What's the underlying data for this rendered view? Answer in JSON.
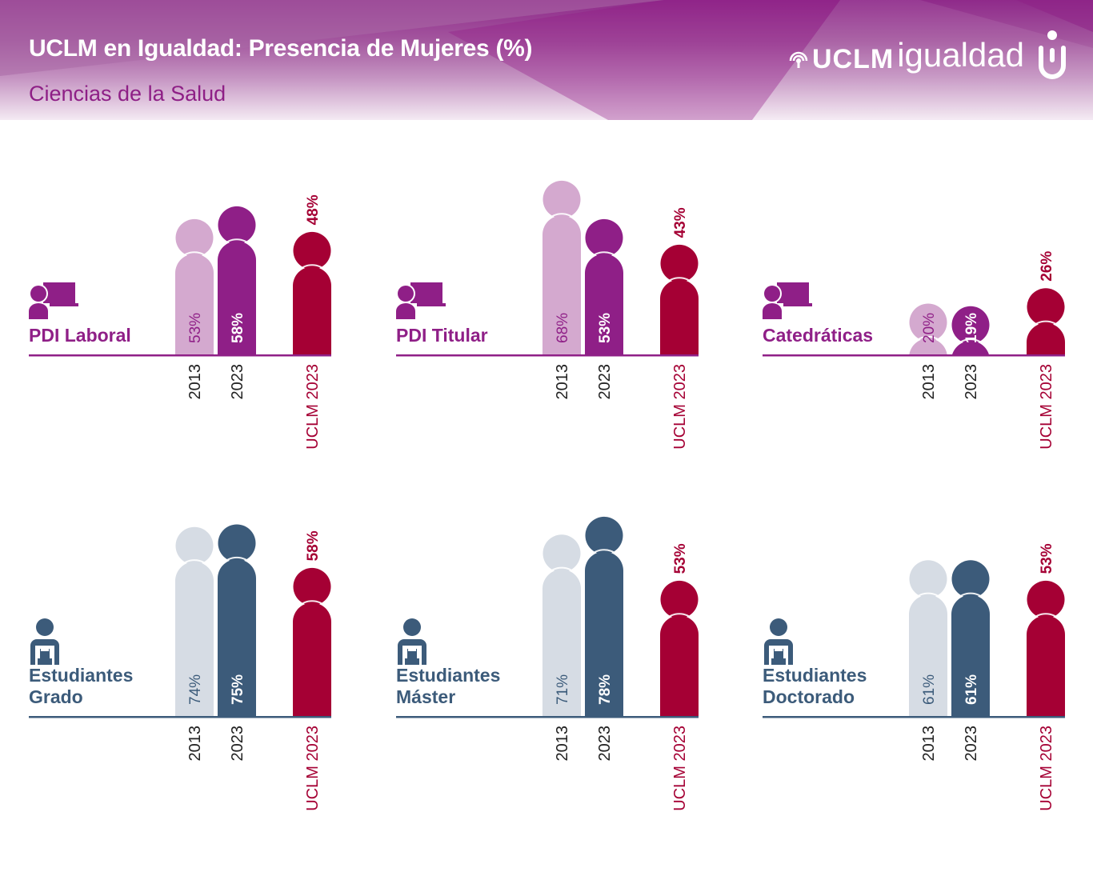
{
  "header": {
    "title": "UCLM en Igualdad: Presencia de Mujeres (%)",
    "subtitle": "Ciencias de la Salud",
    "logo": {
      "wordmark_bold": "UCLM",
      "wordmark_light": "igualdad",
      "icon": "uclm-broadcast-icon",
      "badge_icon": "u-igualdad-badge-icon"
    }
  },
  "colors": {
    "pdi_2013": "#d4a9cf",
    "pdi_2023": "#8f1f87",
    "est_2013": "#d6dce4",
    "est_2023": "#3c5b7a",
    "uclm": "#a50034",
    "pdi_text": "#8f1f87",
    "est_text": "#3c5b7a"
  },
  "chart_data": [
    {
      "type": "bar",
      "title": "PDI Laboral",
      "group": "pdi",
      "icon": "teacher-at-board-icon",
      "categories": [
        "2013",
        "2023",
        "UCLM 2023"
      ],
      "values": [
        53,
        58,
        48
      ],
      "labels": [
        "53%",
        "58%",
        "48%"
      ],
      "ylim": [
        0,
        100
      ]
    },
    {
      "type": "bar",
      "title": "PDI Titular",
      "group": "pdi",
      "icon": "teacher-at-board-icon",
      "categories": [
        "2013",
        "2023",
        "UCLM 2023"
      ],
      "values": [
        68,
        53,
        43
      ],
      "labels": [
        "68%",
        "53%",
        "43%"
      ],
      "ylim": [
        0,
        100
      ]
    },
    {
      "type": "bar",
      "title": "Catedráticas",
      "group": "pdi",
      "icon": "teacher-at-board-icon",
      "categories": [
        "2013",
        "2023",
        "UCLM 2023"
      ],
      "values": [
        20,
        19,
        26
      ],
      "labels": [
        "20%",
        "19%",
        "26%"
      ],
      "ylim": [
        0,
        100
      ]
    },
    {
      "type": "bar",
      "title": "Estudiantes Grado",
      "title_lines": [
        "Estudiantes",
        "Grado"
      ],
      "group": "est",
      "icon": "student-backpack-icon",
      "categories": [
        "2013",
        "2023",
        "UCLM 2023"
      ],
      "values": [
        74,
        75,
        58
      ],
      "labels": [
        "74%",
        "75%",
        "58%"
      ],
      "ylim": [
        0,
        100
      ]
    },
    {
      "type": "bar",
      "title": "Estudiantes Máster",
      "title_lines": [
        "Estudiantes",
        "Máster"
      ],
      "group": "est",
      "icon": "student-backpack-icon",
      "categories": [
        "2013",
        "2023",
        "UCLM 2023"
      ],
      "values": [
        71,
        78,
        53
      ],
      "labels": [
        "71%",
        "78%",
        "53%"
      ],
      "ylim": [
        0,
        100
      ]
    },
    {
      "type": "bar",
      "title": "Estudiantes Doctorado",
      "title_lines": [
        "Estudiantes",
        "Doctorado"
      ],
      "group": "est",
      "icon": "student-backpack-icon",
      "categories": [
        "2013",
        "2023",
        "UCLM 2023"
      ],
      "values": [
        61,
        61,
        53
      ],
      "labels": [
        "61%",
        "61%",
        "53%"
      ],
      "ylim": [
        0,
        100
      ]
    }
  ]
}
